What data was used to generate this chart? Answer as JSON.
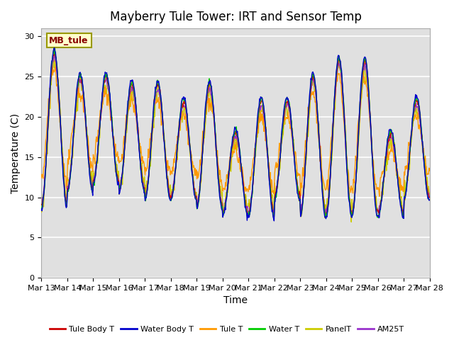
{
  "title": "Mayberry Tule Tower: IRT and Sensor Temp",
  "xlabel": "Time",
  "ylabel": "Temperature (C)",
  "ylim": [
    0,
    31
  ],
  "yticks": [
    0,
    5,
    10,
    15,
    20,
    25,
    30
  ],
  "x_labels": [
    "Mar 13",
    "Mar 14",
    "Mar 15",
    "Mar 16",
    "Mar 17",
    "Mar 18",
    "Mar 19",
    "Mar 20",
    "Mar 21",
    "Mar 22",
    "Mar 23",
    "Mar 24",
    "Mar 25",
    "Mar 26",
    "Mar 27",
    "Mar 28"
  ],
  "legend_label": "MB_tule",
  "series_names": [
    "Tule Body T",
    "Water Body T",
    "Tule T",
    "Water T",
    "PanelT",
    "AM25T"
  ],
  "series_colors": [
    "#cc0000",
    "#0000cc",
    "#ff9900",
    "#00cc00",
    "#cccc00",
    "#9933cc"
  ],
  "background_color": "#e0e0e0",
  "title_fontsize": 12,
  "axis_fontsize": 10,
  "tick_fontsize": 8,
  "legend_box_color": "#ffffcc",
  "legend_box_edge": "#999900",
  "n_days": 15,
  "pts_per_day": 48,
  "daily_highs": [
    28,
    25,
    25,
    24,
    24,
    22,
    24,
    18,
    22,
    22,
    25,
    27,
    27,
    18,
    22
  ],
  "daily_lows": [
    9,
    11,
    12,
    11,
    10,
    10,
    9,
    8,
    8,
    10,
    8,
    8,
    8,
    8,
    10
  ]
}
